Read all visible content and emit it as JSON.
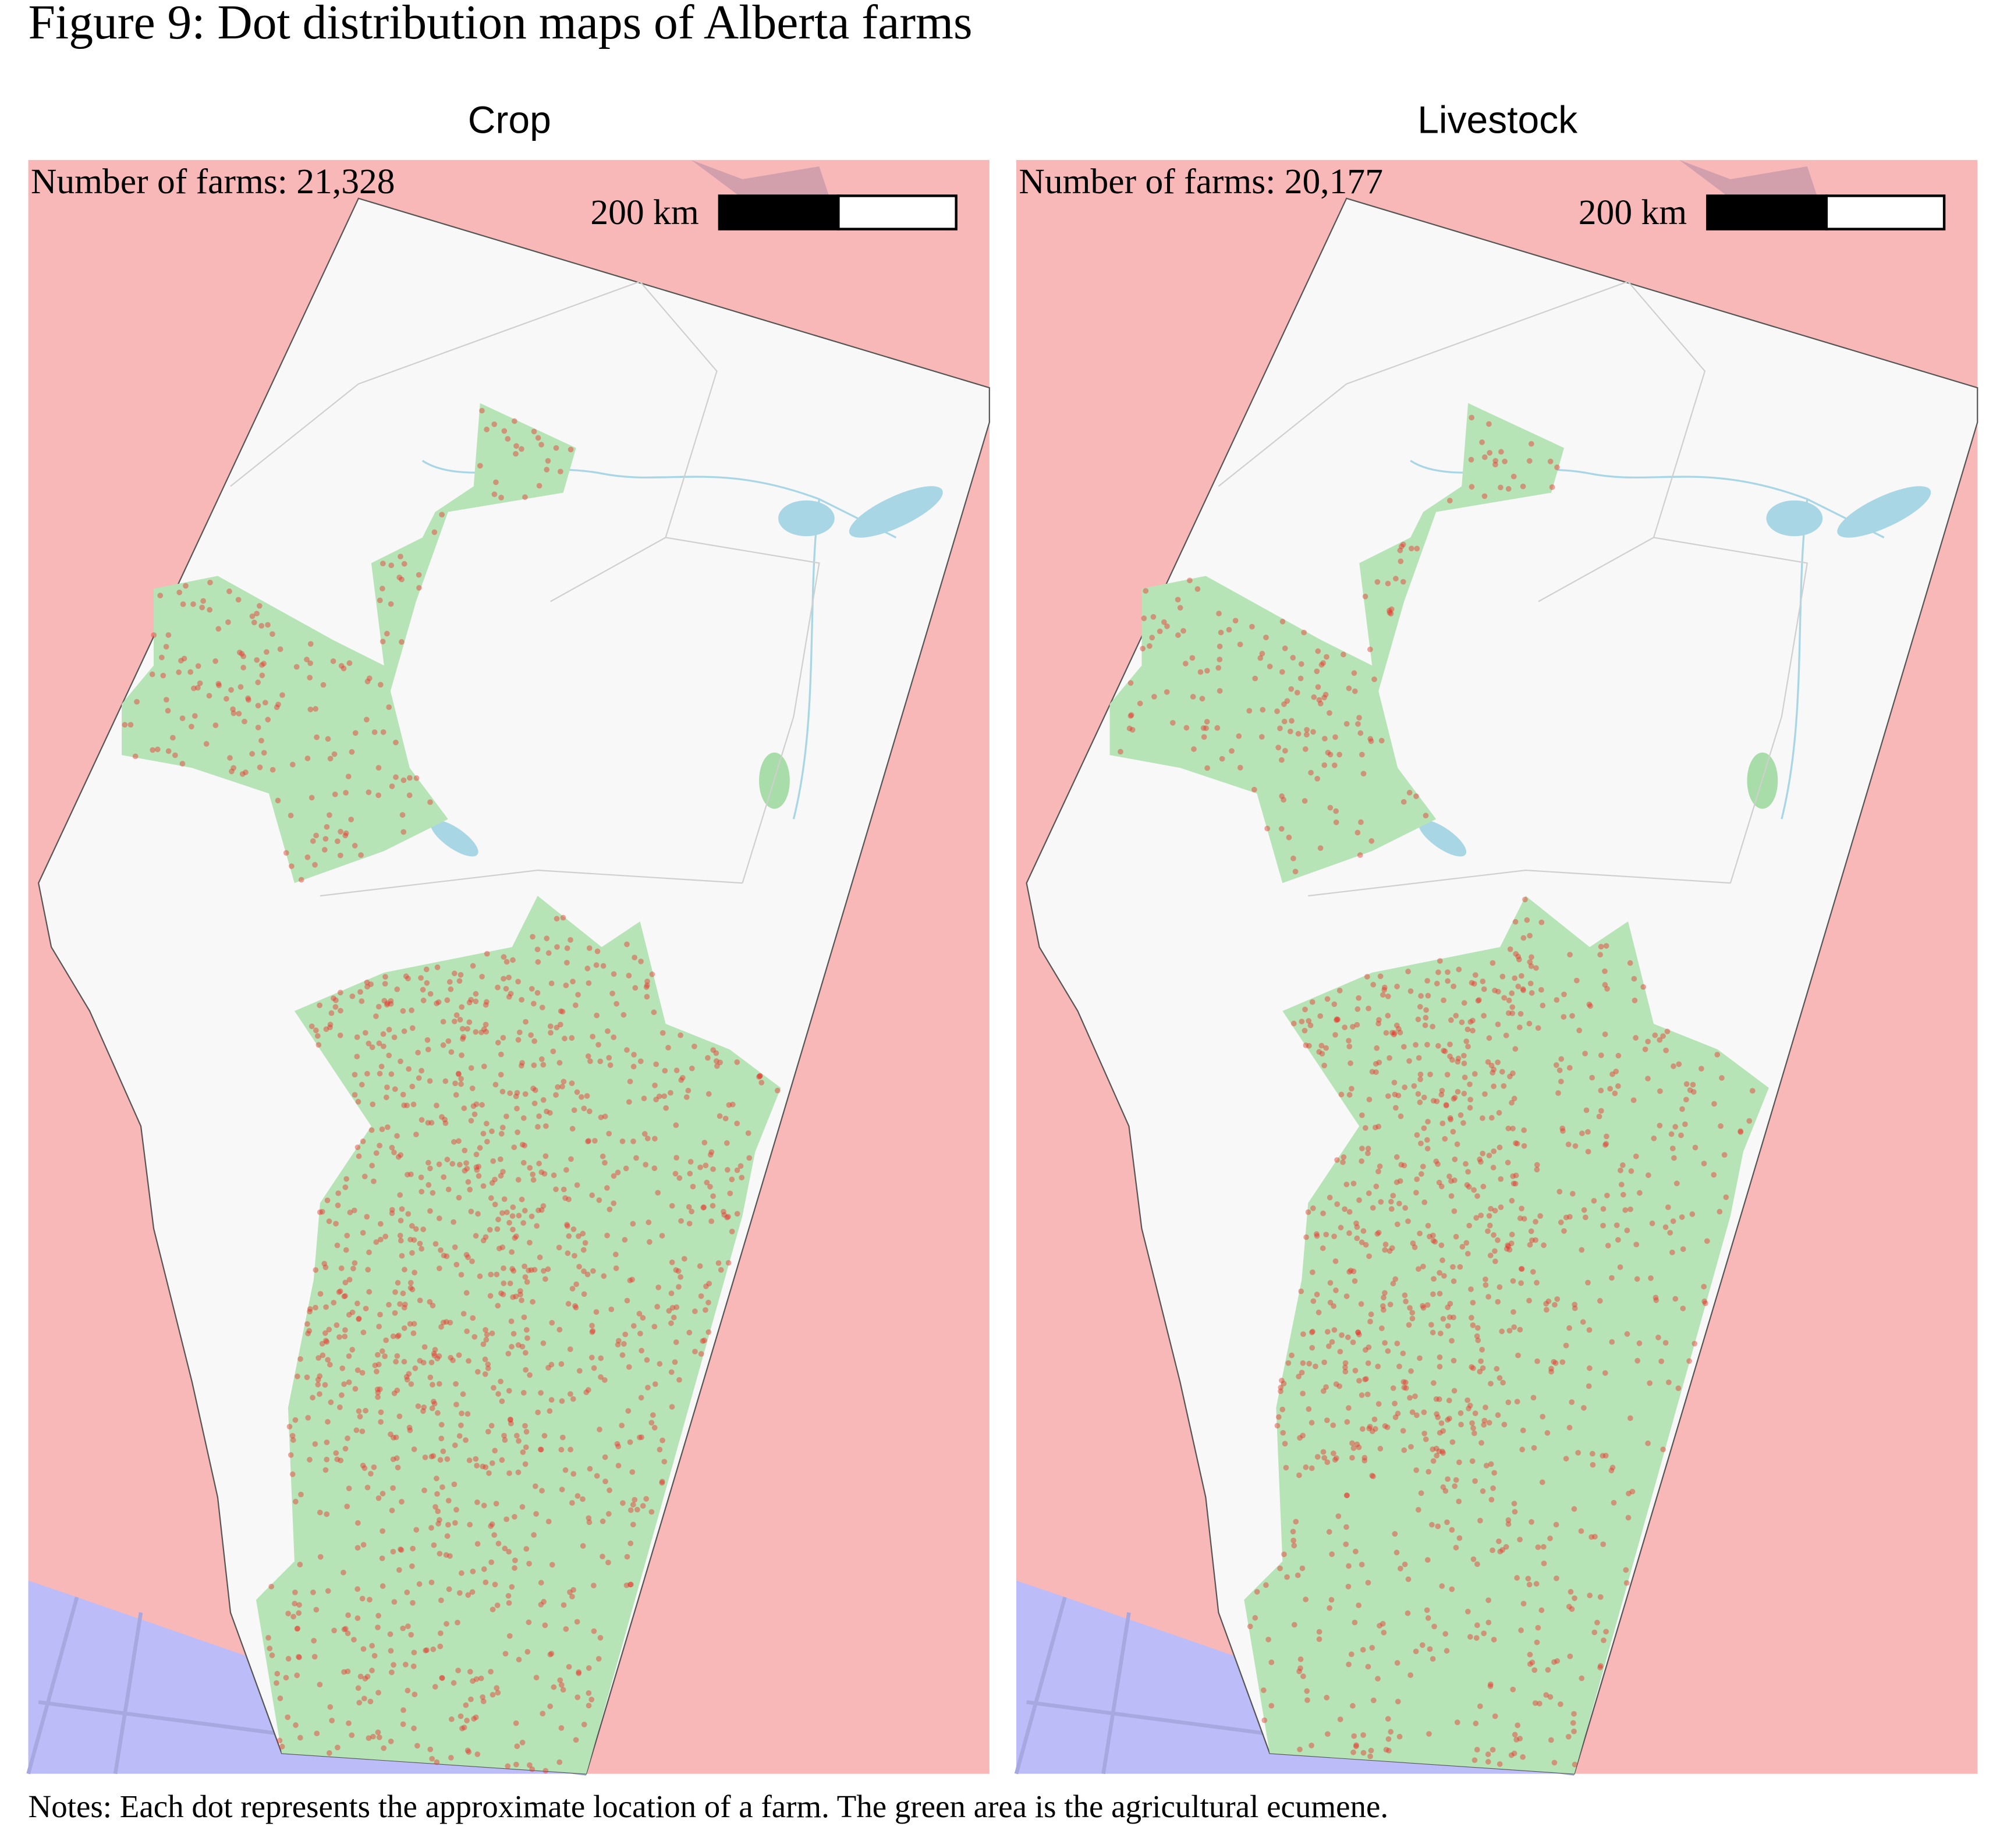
{
  "figure": {
    "title": "Figure 9: Dot distribution maps of Alberta farms",
    "panels": [
      {
        "title": "Crop",
        "count_label": "Number of farms: 21,328",
        "scale_label": "200 km"
      },
      {
        "title": "Livestock",
        "count_label": "Number of farms: 20,177",
        "scale_label": "200 km"
      }
    ],
    "notes": "Notes: Each dot represents the approximate location of a farm. The green area is the agricultural ecumene."
  }
}
